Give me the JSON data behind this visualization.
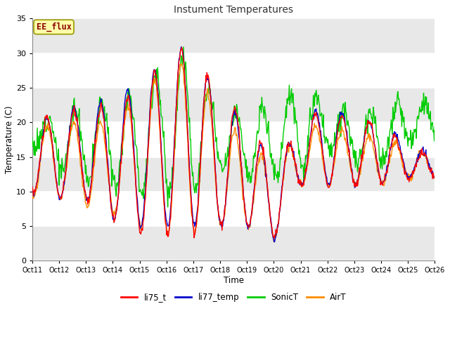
{
  "title": "Instument Temperatures",
  "xlabel": "Time",
  "ylabel": "Temperature (C)",
  "ylim": [
    0,
    35
  ],
  "xlim": [
    0,
    15
  ],
  "x_tick_labels": [
    "Oct 11",
    "Oct 12",
    "Oct 13",
    "Oct 14",
    "Oct 15",
    "Oct 16",
    "Oct 17",
    "Oct 18",
    "Oct 19",
    "Oct 20",
    "Oct 21",
    "Oct 22",
    "Oct 23",
    "Oct 24",
    "Oct 25",
    "Oct 26"
  ],
  "annotation_text": "EE_flux",
  "annotation_color": "#8B0000",
  "annotation_bg": "#FFFFAA",
  "annotation_edge": "#999900",
  "series_colors": {
    "li75_t": "#FF0000",
    "li77_temp": "#0000CC",
    "SonicT": "#00CC00",
    "AirT": "#FF8C00"
  },
  "bg_color": "#FFFFFF",
  "plot_bg": "#FFFFFF",
  "band_color": "#E8E8E8",
  "grid_color": "#FFFFFF",
  "linewidth": 1.0,
  "yticks": [
    0,
    5,
    10,
    15,
    20,
    25,
    30,
    35
  ],
  "figsize": [
    6.4,
    4.8
  ],
  "dpi": 100
}
